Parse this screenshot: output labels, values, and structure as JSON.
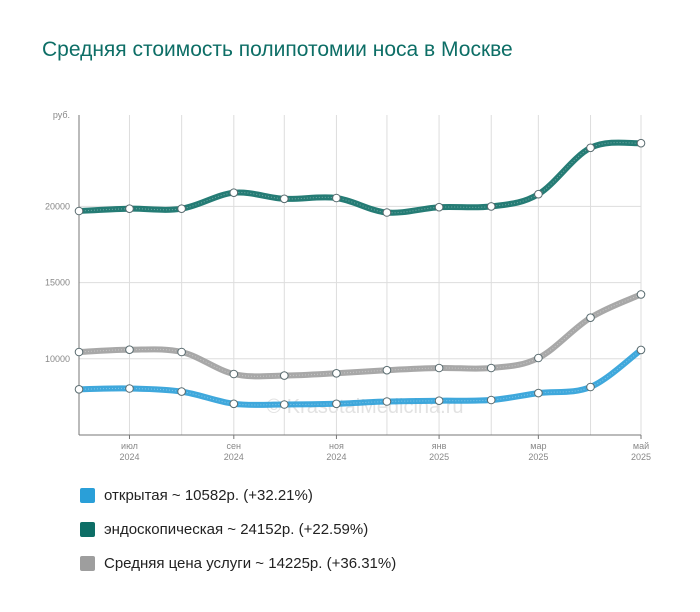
{
  "chart_data": {
    "type": "line",
    "title": "Средняя стоимость полипотомии носа в Москве",
    "ylabel": "руб.",
    "ylim": [
      5000,
      26000
    ],
    "yticks": [
      10000,
      15000,
      20000
    ],
    "ytick_labels": [
      "10000",
      "15000",
      "20000"
    ],
    "x": [
      "2024-06-01",
      "2024-07-01",
      "2024-08-01",
      "2024-09-01",
      "2024-10-01",
      "2024-11-01",
      "2024-12-01",
      "2025-01-01",
      "2025-02-01",
      "2025-03-01",
      "2025-04-01",
      "2025-05-01"
    ],
    "xticks": [
      {
        "x": "2024-07-01",
        "line1": "июл",
        "line2": "2024"
      },
      {
        "x": "2024-09-01",
        "line1": "сен",
        "line2": "2024"
      },
      {
        "x": "2024-11-01",
        "line1": "ноя",
        "line2": "2024"
      },
      {
        "x": "2025-01-01",
        "line1": "янв",
        "line2": "2025"
      },
      {
        "x": "2025-03-01",
        "line1": "мар",
        "line2": "2025"
      },
      {
        "x": "2025-05-01",
        "line1": "май",
        "line2": "2025"
      }
    ],
    "series": [
      {
        "key": "open",
        "name": "открытая ~ 10582р. (+32.21%)",
        "color": "#2a9fd8",
        "values": [
          8000,
          8050,
          7850,
          7050,
          7000,
          7050,
          7200,
          7250,
          7300,
          7750,
          8150,
          10582
        ]
      },
      {
        "key": "endo",
        "name": "эндоскопическая ~ 24152р. (+22.59%)",
        "color": "#0d6e66",
        "values": [
          19700,
          19850,
          19850,
          20900,
          20500,
          20550,
          19600,
          19950,
          20000,
          20800,
          23850,
          24152
        ]
      },
      {
        "key": "avg",
        "name": "Средняя цена услуги ~ 14225р. (+36.31%)",
        "color": "#9e9e9e",
        "values": [
          10450,
          10600,
          10450,
          9000,
          8900,
          9050,
          9250,
          9400,
          9400,
          10050,
          12700,
          14225
        ]
      }
    ],
    "grid": true,
    "legend_position": "bottom-left",
    "watermark": "© KrasotaiMedicina.ru"
  }
}
